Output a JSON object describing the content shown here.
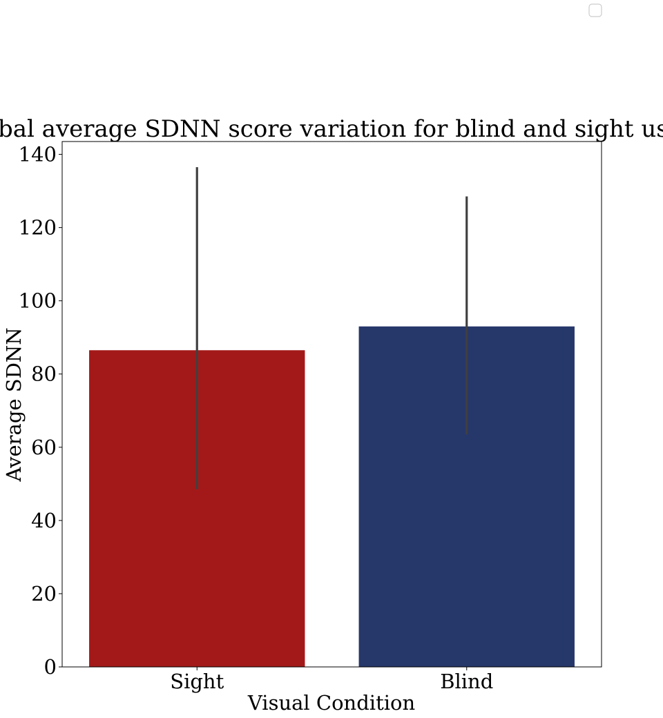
{
  "chart_data": {
    "type": "bar",
    "title": "Global average SDNN score variation for blind and sight users",
    "xlabel": "Visual Condition",
    "ylabel": "Average SDNN",
    "categories": [
      "Sight",
      "Blind"
    ],
    "values": [
      86.5,
      93.0
    ],
    "error_bars": [
      {
        "low": 48.5,
        "high": 136.5
      },
      {
        "low": 63.5,
        "high": 128.5
      }
    ],
    "colors": [
      "#a31919",
      "#26376a"
    ],
    "error_color": "#404040",
    "ylim": [
      0,
      143.5
    ],
    "yticks": [
      0,
      20,
      40,
      60,
      80,
      100,
      120,
      140
    ],
    "grid": false,
    "legend": {
      "position": "top-right",
      "entries": []
    }
  }
}
